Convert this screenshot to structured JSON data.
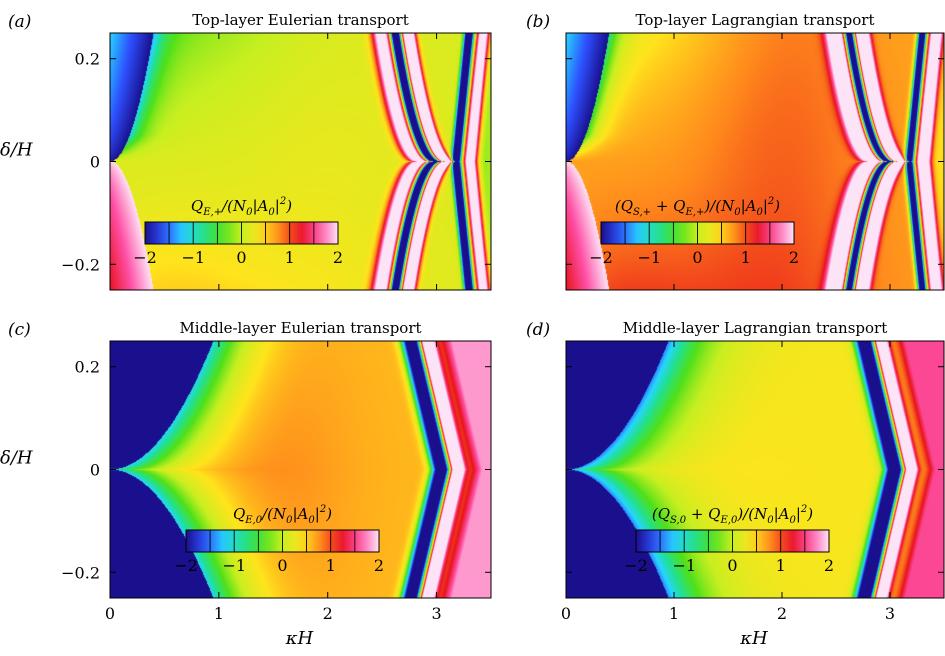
{
  "chart_data": [
    {
      "type": "heatmap",
      "panel_label": "(a)",
      "title": "Top-layer Eulerian transport",
      "colorbar_label": "Q_{E,+}/(N_0|A_0|^2)",
      "colorbar_label_html": "Q<tspan font-size='10px' dy='4'>E,+</tspan><tspan dy='-4'>/(N</tspan><tspan font-size='10px' dy='4'>0</tspan><tspan dy='-4'>|A</tspan><tspan font-size='10px' dy='4'>0</tspan><tspan dy='-4'>|</tspan><tspan font-size='10px' dy='-7'>2</tspan><tspan dy='7'>)</tspan>",
      "xlabel": "",
      "ylabel": "δ/H",
      "xlim": [
        0,
        3.5
      ],
      "ylim": [
        -0.25,
        0.25
      ],
      "yticks": [
        -0.2,
        0,
        0.2
      ],
      "xticks": [],
      "colorbar_ticks": [
        -2,
        -1,
        0,
        1,
        2
      ],
      "clim": [
        -2,
        2
      ],
      "field": "top-eulerian"
    },
    {
      "type": "heatmap",
      "panel_label": "(b)",
      "title": "Top-layer Lagrangian transport",
      "colorbar_label": "(Q_{S,+}+Q_{E,+})/(N_0|A_0|^2)",
      "colorbar_label_html": "(Q<tspan font-size='10px' dy='4'>S,+</tspan><tspan dy='-4'> + Q</tspan><tspan font-size='10px' dy='4'>E,+</tspan><tspan dy='-4'>)/(N</tspan><tspan font-size='10px' dy='4'>0</tspan><tspan dy='-4'>|A</tspan><tspan font-size='10px' dy='4'>0</tspan><tspan dy='-4'>|</tspan><tspan font-size='10px' dy='-7'>2</tspan><tspan dy='7'>)</tspan>",
      "xlabel": "",
      "ylabel": "",
      "xlim": [
        0,
        3.5
      ],
      "ylim": [
        -0.25,
        0.25
      ],
      "yticks": [],
      "xticks": [],
      "colorbar_ticks": [
        -2,
        -1,
        0,
        1,
        2
      ],
      "clim": [
        -2,
        2
      ],
      "field": "top-lagrangian"
    },
    {
      "type": "heatmap",
      "panel_label": "(c)",
      "title": "Middle-layer Eulerian transport",
      "colorbar_label": "Q_{E,0}/(N_0|A_0|^2)",
      "colorbar_label_html": "Q<tspan font-size='10px' dy='4'>E,0</tspan><tspan dy='-4'>/(N</tspan><tspan font-size='10px' dy='4'>0</tspan><tspan dy='-4'>|A</tspan><tspan font-size='10px' dy='4'>0</tspan><tspan dy='-4'>|</tspan><tspan font-size='10px' dy='-7'>2</tspan><tspan dy='7'>)</tspan>",
      "xlabel": "κH",
      "ylabel": "δ/H",
      "xlim": [
        0,
        3.5
      ],
      "ylim": [
        -0.25,
        0.25
      ],
      "yticks": [
        -0.2,
        0,
        0.2
      ],
      "xticks": [
        0,
        1,
        2,
        3
      ],
      "colorbar_ticks": [
        -2,
        -1,
        0,
        1,
        2
      ],
      "clim": [
        -2,
        2
      ],
      "field": "mid-eulerian"
    },
    {
      "type": "heatmap",
      "panel_label": "(d)",
      "title": "Middle-layer Lagrangian transport",
      "colorbar_label": "(Q_{S,0}+Q_{E,0})/(N_0|A_0|^2)",
      "colorbar_label_html": "(Q<tspan font-size='10px' dy='4'>S,0</tspan><tspan dy='-4'> + Q</tspan><tspan font-size='10px' dy='4'>E,0</tspan><tspan dy='-4'>)/(N</tspan><tspan font-size='10px' dy='4'>0</tspan><tspan dy='-4'>|A</tspan><tspan font-size='10px' dy='4'>0</tspan><tspan dy='-4'>|</tspan><tspan font-size='10px' dy='-7'>2</tspan><tspan dy='7'>)</tspan>",
      "xlabel": "κH",
      "ylabel": "",
      "xlim": [
        0,
        3.5
      ],
      "ylim": [
        -0.25,
        0.25
      ],
      "yticks": [],
      "xticks": [
        0,
        1,
        2,
        3
      ],
      "colorbar_ticks": [
        -2,
        -1,
        0,
        1,
        2
      ],
      "clim": [
        -2,
        2
      ],
      "field": "mid-lagrangian"
    }
  ],
  "colormap": [
    "#1a0f8c",
    "#2e50ff",
    "#26d6ff",
    "#22e08f",
    "#4fe01a",
    "#c7ef20",
    "#ffe41c",
    "#ff8a1c",
    "#e8121c",
    "#ff4fa6",
    "#fde3f6"
  ]
}
